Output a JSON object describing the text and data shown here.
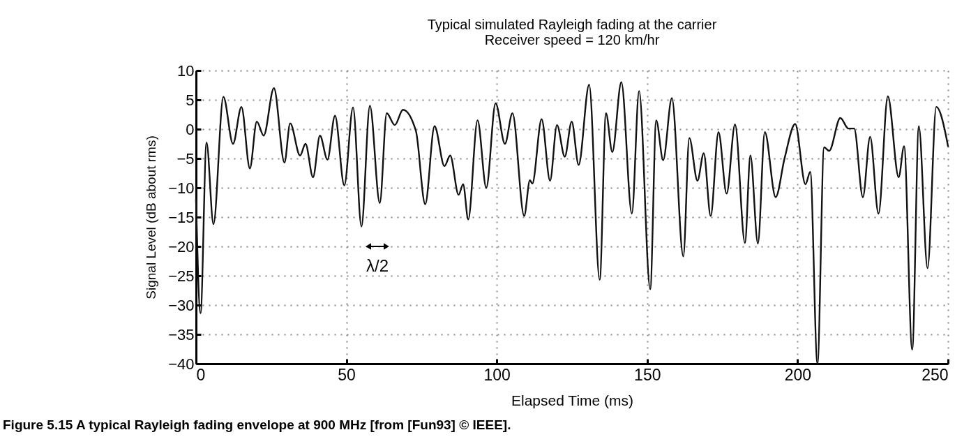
{
  "chart_data": {
    "type": "line",
    "title": "Typical simulated Rayleigh fading at the carrier",
    "subtitle": "Receiver speed = 120 km/hr",
    "xlabel": "Elapsed Time (ms)",
    "ylabel": "Signal Level (dB about rms)",
    "x": [
      0,
      1.5,
      3.5,
      5.8,
      9.1,
      12.3,
      15.1,
      17.9,
      20.2,
      22.5,
      25.9,
      29.4,
      31.3,
      34.6,
      36.4,
      38.9,
      41.2,
      43.7,
      46.2,
      49.3,
      52.2,
      55,
      57.8,
      61.1,
      63.4,
      66.1,
      68.8,
      73.1,
      76.2,
      79.3,
      82.6,
      84.5,
      87.3,
      88.8,
      90.5,
      93.6,
      96.5,
      99.6,
      102.7,
      105.2,
      109.1,
      111,
      111.8,
      114.9,
      117.7,
      120,
      122.6,
      124.9,
      127.2,
      130.7,
      134.2,
      136.3,
      138.4,
      141.4,
      144.9,
      147.3,
      151,
      153,
      155.3,
      158.2,
      162,
      164,
      166.7,
      168.8,
      171.1,
      173.7,
      176.4,
      179.2,
      182.5,
      184.3,
      186.8,
      189.1,
      192.7,
      195.7,
      199.2,
      202.6,
      204.2,
      206.6,
      208.8,
      210.5,
      214.2,
      216.9,
      218.8,
      221.7,
      224.1,
      226.9,
      230,
      233.6,
      235.4,
      238.1,
      240.3,
      243.2,
      246.1,
      249.4,
      250
    ],
    "series": [
      {
        "color": "#111111",
        "values": [
          -12,
          -31.4,
          -2.3,
          -16.2,
          5.5,
          -2.5,
          3.8,
          -6.7,
          1.3,
          -1.1,
          7,
          -5.7,
          1,
          -4.5,
          -2.5,
          -8.2,
          -1.1,
          -5.2,
          2.3,
          -9.6,
          3.7,
          -16.6,
          4,
          -12.6,
          2.7,
          0.7,
          3.3,
          -0.3,
          -12.8,
          0.5,
          -6.3,
          -4.5,
          -11.2,
          -9.4,
          -15.4,
          1.5,
          -10,
          4.4,
          -2.5,
          2.7,
          -14.8,
          -8.7,
          -9.3,
          1.7,
          -8.8,
          0.7,
          -4.7,
          1.3,
          -6.1,
          7.6,
          -25.7,
          2.7,
          -3.9,
          8,
          -14.4,
          6.5,
          -27.3,
          1.5,
          -5.3,
          5.3,
          -21.7,
          -1.5,
          -8.8,
          -4.1,
          -14.8,
          -0.5,
          -11,
          0.8,
          -19.4,
          -4.5,
          -19.5,
          -0.5,
          -11.6,
          -4.9,
          0.9,
          -9.4,
          -7.3,
          -40,
          -3.1,
          -3.7,
          1.9,
          0.1,
          0.1,
          -11.6,
          -1.3,
          -14.4,
          5.6,
          -8.2,
          -2.9,
          -37.6,
          0.5,
          -23.7,
          3.8,
          -1.3,
          -2.9
        ]
      }
    ],
    "xlim": [
      0,
      250
    ],
    "ylim": [
      -40,
      10
    ],
    "xticks": [
      0,
      50,
      100,
      150,
      200,
      250
    ],
    "yticks": [
      -40,
      -35,
      -30,
      -25,
      -20,
      -15,
      -10,
      -5,
      0,
      5,
      10
    ],
    "grid": true,
    "line_style": "solid",
    "marker": "none",
    "legend": false,
    "annotations": [
      "λ/2",
      "Figure 5.15    A typical Rayleigh fading envelope at 900 MHz [from [Fun93] © IEEE]."
    ]
  }
}
